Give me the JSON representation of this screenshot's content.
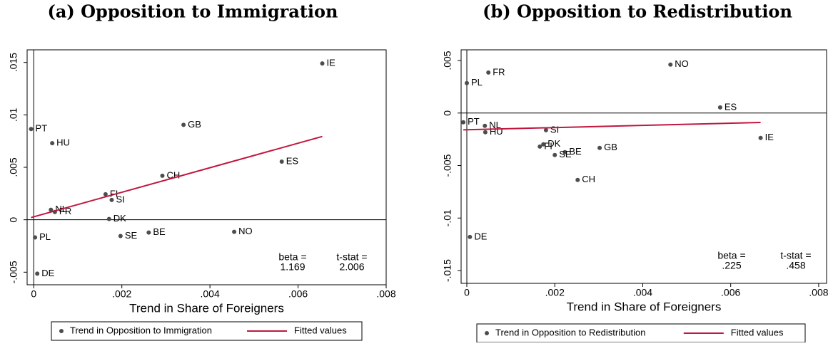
{
  "chart_data": [
    {
      "type": "scatter",
      "title": "(a) Opposition to Immigration",
      "x_label": "Trend in Share of Foreigners",
      "xlim": [
        -0.00015,
        0.008
      ],
      "ylim": [
        -0.0062,
        0.0162
      ],
      "xticks": [
        0,
        {
          "value": 0.002,
          "label": ".002"
        },
        {
          "value": 0.004,
          "label": ".004"
        },
        {
          "value": 0.006,
          "label": ".006"
        },
        {
          "value": 0.008,
          "label": ".008"
        }
      ],
      "yticks": [
        {
          "value": -0.005,
          "label": "-.005"
        },
        0,
        {
          "value": 0.005,
          "label": ".005"
        },
        {
          "value": 0.01,
          "label": ".01"
        },
        {
          "value": 0.015,
          "label": ".015"
        }
      ],
      "series": [
        {
          "name": "Trend in Opposition to Immigration",
          "color": "#4d4d4d",
          "labels": [
            "IE",
            "PT",
            "HU",
            "GB",
            "ES",
            "CH",
            "FI",
            "SI",
            "NL",
            "FR",
            "DK",
            "PL",
            "SE",
            "BE",
            "NO",
            "DE"
          ],
          "x": [
            0.00655,
            -6e-05,
            0.00042,
            0.0034,
            0.00563,
            0.00292,
            0.00163,
            0.00177,
            0.00039,
            0.00048,
            0.00171,
            3e-05,
            0.00197,
            0.00261,
            0.00455,
            8e-05
          ],
          "values": [
            0.0149,
            0.00865,
            0.0073,
            0.00905,
            0.00554,
            0.00419,
            0.00243,
            0.00189,
            0.00095,
            0.00074,
            7e-05,
            -0.00169,
            -0.00155,
            -0.00122,
            -0.00115,
            -0.00514
          ]
        },
        {
          "name": "Fitted values",
          "color": "#c0173f",
          "x": [
            -6e-05,
            0.00655
          ],
          "values": [
            0.00021,
            0.00794
          ]
        }
      ],
      "annotations": [
        {
          "label": "beta =",
          "value": "1.169"
        },
        {
          "label": "t-stat =",
          "value": "2.006"
        }
      ]
    },
    {
      "type": "scatter",
      "title": "(b) Opposition to Redistribution",
      "x_label": "Trend in Share of Foreigners",
      "xlim": [
        -0.00013,
        0.00818
      ],
      "ylim": [
        -0.01622,
        0.00602
      ],
      "xticks": [
        0,
        {
          "value": 0.002,
          "label": ".002"
        },
        {
          "value": 0.004,
          "label": ".004"
        },
        {
          "value": 0.006,
          "label": ".006"
        },
        {
          "value": 0.008,
          "label": ".008"
        }
      ],
      "yticks": [
        {
          "value": -0.015,
          "label": "-.015"
        },
        {
          "value": -0.01,
          "label": "-.01"
        },
        {
          "value": -0.005,
          "label": "-.005"
        },
        0,
        {
          "value": 0.005,
          "label": ".005"
        }
      ],
      "series": [
        {
          "name": "Trend in Opposition to Redistribution",
          "color": "#4d4d4d",
          "labels": [
            "NO",
            "FR",
            "PL",
            "ES",
            "PT",
            "NL",
            "SI",
            "HU",
            "IE",
            "FI",
            "DK",
            "BE",
            "GB",
            "SE",
            "CH",
            "DE"
          ],
          "x": [
            0.00463,
            0.00049,
            0,
            0.00576,
            -8e-05,
            0.00041,
            0.0018,
            0.00042,
            0.00668,
            0.00166,
            0.00174,
            0.00223,
            0.00302,
            0.002,
            0.00252,
            7e-05
          ],
          "values": [
            0.00461,
            0.00386,
            0.00285,
            0.00054,
            -0.00088,
            -0.00122,
            -0.00163,
            -0.00183,
            -0.00237,
            -0.00319,
            -0.00298,
            -0.00373,
            -0.00332,
            -0.004,
            -0.00637,
            -0.0118
          ]
        },
        {
          "name": "Fitted values",
          "color": "#c0173f",
          "x": [
            -8e-05,
            0.00668
          ],
          "values": [
            -0.0016,
            -0.0009
          ]
        }
      ],
      "annotations": [
        {
          "label": "beta =",
          "value": ".225"
        },
        {
          "label": "t-stat =",
          "value": ".458"
        }
      ]
    }
  ]
}
